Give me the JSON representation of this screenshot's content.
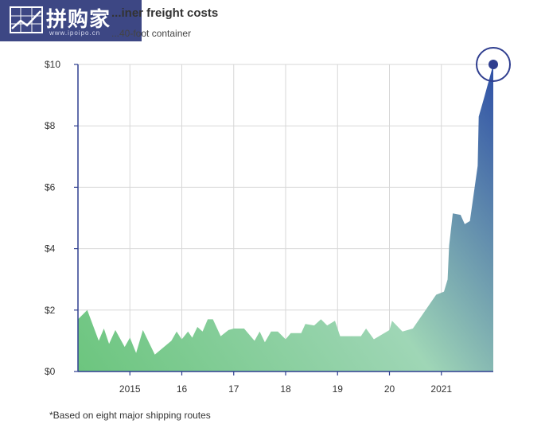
{
  "header": {
    "title": "...iner freight costs",
    "subtitle": "...40-foot container"
  },
  "logo": {
    "text": "拼购家",
    "url": "www.ipoipo.cn"
  },
  "footnote": "*Based on eight major shipping routes",
  "colors": {
    "area_start": "#6cc57e",
    "area_mid": "#9fd6b6",
    "area_end": "#2e4fa6",
    "axis": "#2f3e8f",
    "grid": "#d7d7d7",
    "highlight": "#2f3e8f"
  },
  "chart_data": {
    "type": "area",
    "title": "...iner freight costs",
    "subtitle": "...40-foot container",
    "ylim": [
      0,
      10
    ],
    "yticks": [
      0,
      2,
      4,
      6,
      8,
      10
    ],
    "ytick_labels": [
      "$0",
      "$2",
      "$4",
      "$6",
      "$8",
      "$10"
    ],
    "xlim": [
      2014.0,
      2022.0
    ],
    "xticks": [
      2015,
      2016,
      2017,
      2018,
      2019,
      2020,
      2021
    ],
    "xtick_labels": [
      "2015",
      "16",
      "17",
      "18",
      "19",
      "20",
      "2021"
    ],
    "grid": true,
    "highlight_last_point": true,
    "series": [
      {
        "points": [
          [
            2014.0,
            1.7
          ],
          [
            2014.18,
            2.0
          ],
          [
            2014.4,
            1.0
          ],
          [
            2014.5,
            1.4
          ],
          [
            2014.6,
            0.9
          ],
          [
            2014.72,
            1.35
          ],
          [
            2014.9,
            0.8
          ],
          [
            2015.0,
            1.1
          ],
          [
            2015.12,
            0.6
          ],
          [
            2015.25,
            1.35
          ],
          [
            2015.48,
            0.55
          ],
          [
            2015.8,
            1.0
          ],
          [
            2015.9,
            1.3
          ],
          [
            2016.0,
            1.05
          ],
          [
            2016.12,
            1.3
          ],
          [
            2016.2,
            1.1
          ],
          [
            2016.3,
            1.45
          ],
          [
            2016.4,
            1.3
          ],
          [
            2016.5,
            1.7
          ],
          [
            2016.6,
            1.7
          ],
          [
            2016.75,
            1.15
          ],
          [
            2016.9,
            1.35
          ],
          [
            2017.0,
            1.4
          ],
          [
            2017.2,
            1.4
          ],
          [
            2017.4,
            1.0
          ],
          [
            2017.5,
            1.3
          ],
          [
            2017.6,
            0.95
          ],
          [
            2017.72,
            1.3
          ],
          [
            2017.85,
            1.3
          ],
          [
            2018.0,
            1.05
          ],
          [
            2018.1,
            1.25
          ],
          [
            2018.3,
            1.25
          ],
          [
            2018.38,
            1.55
          ],
          [
            2018.55,
            1.5
          ],
          [
            2018.68,
            1.7
          ],
          [
            2018.8,
            1.5
          ],
          [
            2018.95,
            1.65
          ],
          [
            2019.05,
            1.15
          ],
          [
            2019.2,
            1.15
          ],
          [
            2019.45,
            1.15
          ],
          [
            2019.55,
            1.4
          ],
          [
            2019.7,
            1.05
          ],
          [
            2020.0,
            1.35
          ],
          [
            2020.05,
            1.65
          ],
          [
            2020.25,
            1.3
          ],
          [
            2020.45,
            1.4
          ],
          [
            2020.9,
            2.5
          ],
          [
            2021.05,
            2.6
          ],
          [
            2021.12,
            3.0
          ],
          [
            2021.15,
            4.1
          ],
          [
            2021.22,
            5.15
          ],
          [
            2021.37,
            5.1
          ],
          [
            2021.45,
            4.8
          ],
          [
            2021.55,
            4.9
          ],
          [
            2021.7,
            6.7
          ],
          [
            2021.72,
            8.3
          ],
          [
            2021.82,
            8.9
          ],
          [
            2022.0,
            10.0
          ]
        ]
      }
    ]
  }
}
